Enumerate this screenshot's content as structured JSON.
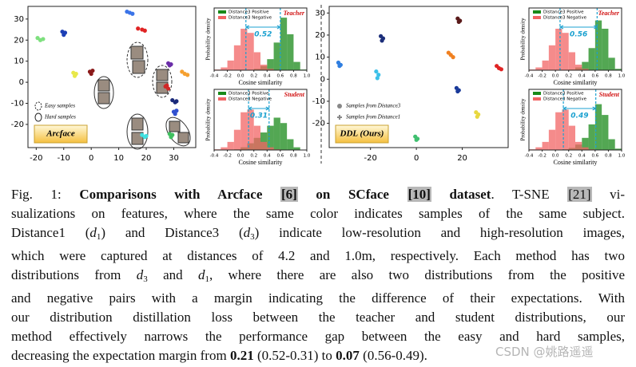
{
  "chart_data": [
    {
      "type": "scatter",
      "label": "Arcface",
      "xlim": [
        -23,
        38
      ],
      "ylim": [
        -31,
        36
      ],
      "xticks": [
        -20,
        -10,
        0,
        10,
        20,
        30
      ],
      "yticks": [
        -20,
        -10,
        0,
        10,
        20,
        30
      ],
      "legend": [
        {
          "label": "Easy samples",
          "marker": "dashed-ellipse"
        },
        {
          "label": "Hard samples",
          "marker": "ellipse"
        }
      ],
      "series": [
        {
          "color": "#7ee07e",
          "x": [
            -19.5,
            -18.5,
            -17.5
          ],
          "y": [
            21,
            20,
            20.5
          ]
        },
        {
          "color": "#1c3fb5",
          "x": [
            -10.5,
            -9.5,
            -10
          ],
          "y": [
            24,
            23.5,
            22.5
          ]
        },
        {
          "color": "#3b74e8",
          "x": [
            13,
            14,
            15
          ],
          "y": [
            33.5,
            33,
            32.5
          ]
        },
        {
          "color": "#e02424",
          "x": [
            17,
            18.5,
            19.5
          ],
          "y": [
            25.5,
            25,
            24.5
          ]
        },
        {
          "color": "#e8e84a",
          "x": [
            -6.5,
            -5.5,
            -6
          ],
          "y": [
            4.5,
            4,
            3
          ]
        },
        {
          "color": "#8b1a1a",
          "x": [
            -0.5,
            0.5,
            0
          ],
          "y": [
            5,
            5.5,
            4
          ]
        },
        {
          "color": "#f5a030",
          "x": [
            33,
            34,
            35
          ],
          "y": [
            5,
            4,
            3.5
          ]
        },
        {
          "color": "#6a2da8",
          "x": [
            28,
            29,
            28.5
          ],
          "y": [
            9,
            8.5,
            8
          ]
        },
        {
          "color": "#1a2a7a",
          "x": [
            29.5,
            30.5,
            31
          ],
          "y": [
            -8.5,
            -9.5,
            -9
          ]
        },
        {
          "color": "#3050d0",
          "x": [
            30,
            31,
            30.5
          ],
          "y": [
            -14,
            -13.5,
            -15
          ]
        },
        {
          "color": "#40e0e0",
          "x": [
            18.5,
            19.5,
            20
          ],
          "y": [
            -25,
            -26,
            -25.5
          ]
        },
        {
          "color": "#40c060",
          "x": [
            28.5,
            29.5,
            29
          ],
          "y": [
            -24.5,
            -25,
            -26
          ]
        },
        {
          "color": "#d02828",
          "x": [
            27,
            28,
            27.5
          ],
          "y": [
            -2,
            -3,
            -1.5
          ]
        }
      ]
    },
    {
      "type": "histogram",
      "tag": "Teacher",
      "annotation": "0.52",
      "xlabel": "Cosine similarity",
      "ylabel": "Probability density",
      "legend_corner": "upper left",
      "xlim": [
        -0.4,
        1.0
      ],
      "ylim": [
        0,
        4.5
      ],
      "xticks": [
        -0.4,
        -0.2,
        {
          "value": 0,
          "label": "0.0"
        },
        0.2,
        0.4,
        0.6,
        0.8,
        {
          "value": 1,
          "label": "1.0"
        }
      ],
      "bins": [
        -0.4,
        -0.3,
        -0.2,
        -0.1,
        0,
        0.1,
        0.2,
        0.3,
        0.4,
        0.5,
        0.6,
        0.7,
        0.8,
        0.9,
        1.0
      ],
      "means": [
        0.08,
        0.6
      ],
      "series": [
        {
          "name": "Distance3 Positive",
          "color": "#1a8a1a",
          "values": [
            0,
            0,
            0,
            0,
            0,
            0,
            0.1,
            0.3,
            0.8,
            2.0,
            3.8,
            2.6,
            0.6,
            0.05
          ]
        },
        {
          "name": "Distance3 Negative",
          "color": "#f26464",
          "values": [
            0.05,
            0.2,
            0.7,
            1.8,
            3.0,
            2.7,
            1.3,
            0.4,
            0.1,
            0,
            0,
            0,
            0,
            0
          ]
        }
      ]
    },
    {
      "type": "histogram",
      "tag": "Student",
      "annotation": "0.31",
      "xlabel": "Cosine similarity",
      "ylabel": "Probability density",
      "legend_corner": "upper left",
      "xlim": [
        -0.4,
        1.0
      ],
      "ylim": [
        0,
        4.5
      ],
      "xticks": [
        -0.4,
        -0.2,
        {
          "value": 0,
          "label": "0.0"
        },
        0.2,
        0.4,
        0.6,
        0.8,
        {
          "value": 1,
          "label": "1.0"
        }
      ],
      "bins": [
        -0.4,
        -0.3,
        -0.2,
        -0.1,
        0,
        0.1,
        0.2,
        0.3,
        0.4,
        0.5,
        0.6,
        0.7,
        0.8,
        0.9,
        1.0
      ],
      "means": [
        0.12,
        0.43
      ],
      "series": [
        {
          "name": "Distance3 Positive",
          "color": "#1a8a1a",
          "values": [
            0,
            0,
            0,
            0.05,
            0.2,
            0.5,
            0.9,
            1.3,
            1.8,
            2.4,
            2.0,
            0.8,
            0.2,
            0
          ]
        },
        {
          "name": "Distance3 Negative",
          "color": "#f26464",
          "values": [
            0.05,
            0.2,
            0.6,
            1.5,
            2.8,
            3.0,
            1.8,
            0.6,
            0.2,
            0.05,
            0,
            0,
            0,
            0
          ]
        }
      ]
    },
    {
      "type": "scatter",
      "label": "DDL (Ours)",
      "xlim": [
        -38,
        40
      ],
      "ylim": [
        -31,
        33
      ],
      "xticks": [
        -20,
        0,
        20
      ],
      "yticks": [
        -20,
        -10,
        0,
        10,
        20,
        30
      ],
      "legend": [
        {
          "label": "Samples from Distance3",
          "marker": "circle"
        },
        {
          "label": "Samples from Distance1",
          "marker": "plus"
        }
      ],
      "series": [
        {
          "color": "#2f7ee0",
          "x": [
            -34,
            -33,
            -33.5
          ],
          "y": [
            7.5,
            6.5,
            6
          ]
        },
        {
          "color": "#1c2f7a",
          "x": [
            -15.5,
            -14.5,
            -15
          ],
          "y": [
            19.5,
            18.5,
            17.5
          ]
        },
        {
          "color": "#3cc0e8",
          "x": [
            -17.5,
            -16.5,
            -17
          ],
          "y": [
            3.5,
            2,
            0.5
          ]
        },
        {
          "color": "#5a1a1a",
          "x": [
            18,
            19,
            18.5
          ],
          "y": [
            27.5,
            26.5,
            26
          ]
        },
        {
          "color": "#f08020",
          "x": [
            14,
            15,
            16
          ],
          "y": [
            12,
            11,
            10
          ]
        },
        {
          "color": "#e02424",
          "x": [
            35,
            36,
            37
          ],
          "y": [
            6,
            5,
            4.5
          ]
        },
        {
          "color": "#1a3a9a",
          "x": [
            17.5,
            18.5,
            18
          ],
          "y": [
            -4,
            -5,
            -5.5
          ]
        },
        {
          "color": "#e8d840",
          "x": [
            26,
            27,
            26.5
          ],
          "y": [
            -15,
            -16,
            -17
          ]
        },
        {
          "color": "#40c070",
          "x": [
            -0.5,
            0.5,
            0
          ],
          "y": [
            -26,
            -27,
            -27.5
          ]
        }
      ]
    },
    {
      "type": "histogram",
      "tag": "Teacher",
      "annotation": "0.56",
      "xlabel": "Cosine similarity",
      "ylabel": "Probability density",
      "legend_corner": "upper left",
      "xlim": [
        -0.4,
        1.0
      ],
      "ylim": [
        0,
        4.5
      ],
      "xticks": [
        -0.4,
        -0.2,
        {
          "value": 0,
          "label": "0.0"
        },
        0.2,
        0.4,
        0.6,
        0.8,
        {
          "value": 1,
          "label": "1.0"
        }
      ],
      "bins": [
        -0.4,
        -0.3,
        -0.2,
        -0.1,
        0,
        0.1,
        0.2,
        0.3,
        0.4,
        0.5,
        0.6,
        0.7,
        0.8,
        0.9,
        1.0
      ],
      "means": [
        0.07,
        0.63
      ],
      "series": [
        {
          "name": "Distance3 Positive",
          "color": "#1a8a1a",
          "values": [
            0,
            0,
            0,
            0,
            0,
            0,
            0.05,
            0.2,
            0.6,
            1.6,
            3.6,
            3.0,
            0.9,
            0.1
          ]
        },
        {
          "name": "Distance3 Negative",
          "color": "#f26464",
          "values": [
            0.05,
            0.2,
            0.7,
            1.8,
            3.0,
            2.7,
            1.3,
            0.4,
            0.1,
            0,
            0,
            0,
            0,
            0
          ]
        }
      ]
    },
    {
      "type": "histogram",
      "tag": "Student",
      "annotation": "0.49",
      "xlabel": "Cosine similarity",
      "ylabel": "Probability density",
      "legend_corner": "upper left",
      "xlim": [
        -0.4,
        1.0
      ],
      "ylim": [
        0,
        4.5
      ],
      "xticks": [
        -0.4,
        -0.2,
        {
          "value": 0,
          "label": "0.0"
        },
        0.2,
        0.4,
        0.6,
        0.8,
        {
          "value": 1,
          "label": "1.0"
        }
      ],
      "bins": [
        -0.4,
        -0.3,
        -0.2,
        -0.1,
        0,
        0.1,
        0.2,
        0.3,
        0.4,
        0.5,
        0.6,
        0.7,
        0.8,
        0.9,
        1.0
      ],
      "means": [
        0.12,
        0.61
      ],
      "series": [
        {
          "name": "Distance3 Positive",
          "color": "#1a8a1a",
          "values": [
            0,
            0,
            0,
            0,
            0,
            0.05,
            0.15,
            0.4,
            0.9,
            1.9,
            3.4,
            2.6,
            0.8,
            0.1
          ]
        },
        {
          "name": "Distance3 Negative",
          "color": "#f26464",
          "values": [
            0.05,
            0.2,
            0.6,
            1.5,
            2.8,
            3.0,
            1.8,
            0.6,
            0.2,
            0.05,
            0,
            0,
            0,
            0
          ]
        }
      ]
    }
  ],
  "caption": {
    "lines": [
      [
        {
          "text": "Fig. 1: "
        },
        {
          "text": "Comparisons with Arcface ",
          "style": "bold"
        },
        {
          "text": "[6]",
          "style": "bold-ref"
        },
        {
          "text": " on SCface ",
          "style": "bold"
        },
        {
          "text": "[10]",
          "style": "bold-ref"
        },
        {
          "text": " dataset",
          "style": "bold"
        },
        {
          "text": ". T-SNE "
        },
        {
          "text": "[21]",
          "style": "ref"
        },
        {
          "text": " vi-"
        }
      ],
      [
        {
          "text": "sualizations on features, where the same color indicates samples of the same subject."
        }
      ],
      [
        {
          "text": "Distance1 ("
        },
        {
          "text": "d",
          "style": "italic"
        },
        {
          "text": "1",
          "style": "sub"
        },
        {
          "text": ") and Distance3 ("
        },
        {
          "text": "d",
          "style": "italic"
        },
        {
          "text": "3",
          "style": "sub"
        },
        {
          "text": ") indicate low-resolution and high-resolution images,"
        }
      ],
      [
        {
          "text": "which were captured at distances of 4.2 and 1.0m, respectively. Each method has two"
        }
      ],
      [
        {
          "text": "distributions from "
        },
        {
          "text": "d",
          "style": "italic"
        },
        {
          "text": "3",
          "style": "sub"
        },
        {
          "text": " and "
        },
        {
          "text": "d",
          "style": "italic"
        },
        {
          "text": "1",
          "style": "sub"
        },
        {
          "text": ", where there are also two distributions from the positive"
        }
      ],
      [
        {
          "text": "and negative pairs with a margin indicating the difference of their expectations. With"
        }
      ],
      [
        {
          "text": "our distribution distillation loss between the teacher and student distributions, our"
        }
      ],
      [
        {
          "text": "method effectively narrows the performance gap between the easy and hard samples,"
        }
      ],
      [
        {
          "text": "decreasing the expectation margin from "
        },
        {
          "text": "0.21",
          "style": "bold"
        },
        {
          "text": " (0.52-0.31) to "
        },
        {
          "text": "0.07",
          "style": "bold"
        },
        {
          "text": " (0.56-0.49)."
        }
      ]
    ]
  },
  "watermark": "CSDN @姚路遥遥"
}
